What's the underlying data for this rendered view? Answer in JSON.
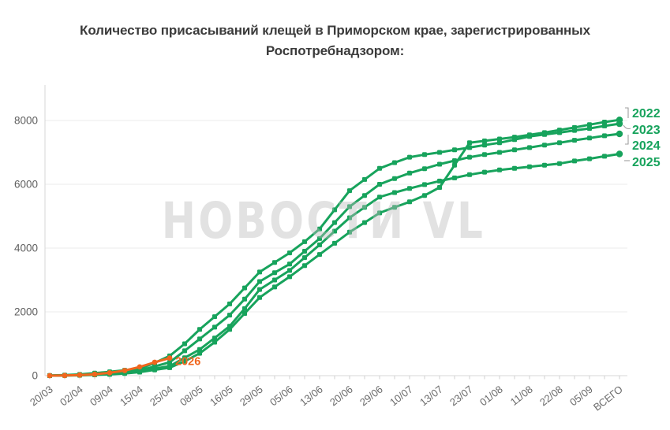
{
  "title": {
    "text": "Количество присасываний клещей в Приморском крае, зарегистрированных Роспотребнадзором:"
  },
  "watermark": {
    "text": "НОВОСТИ VL"
  },
  "colors": {
    "green": "#17a35c",
    "orange": "#f0661e",
    "grid": "#ebebeb",
    "axis_text": "#6a6a6a",
    "title_text": "#3b3b3b",
    "watermark": "#bcbcbc"
  },
  "chart_data": {
    "type": "line",
    "title": "Количество присасываний клещей в Приморском крае, зарегистрированных Роспотребнадзором:",
    "xlabel": "",
    "ylabel": "",
    "ylim": [
      0,
      8800
    ],
    "yticks": [
      0,
      2000,
      4000,
      6000,
      8000
    ],
    "grid": true,
    "legend_position": "right-of-line-ends",
    "x_labels": [
      "20/03",
      "02/04",
      "09/04",
      "15/04",
      "25/04",
      "08/05",
      "16/05",
      "29/05",
      "05/06",
      "13/06",
      "20/06",
      "29/06",
      "10/07",
      "13/07",
      "23/07",
      "01/08",
      "11/08",
      "22/08",
      "05/09",
      "ВСЕГО"
    ],
    "points_per_label_interval": 2,
    "series": [
      {
        "name": "2022",
        "color": "#17a35c",
        "legend": "right",
        "values": [
          0,
          5,
          10,
          25,
          40,
          70,
          110,
          180,
          250,
          450,
          700,
          1050,
          1450,
          1950,
          2450,
          2780,
          3100,
          3450,
          3800,
          4150,
          4500,
          4800,
          5100,
          5280,
          5450,
          5650,
          5900,
          6600,
          7300,
          7360,
          7420,
          7480,
          7550,
          7620,
          7700,
          7780,
          7870,
          7950,
          8020
        ]
      },
      {
        "name": "2023",
        "color": "#17a35c",
        "legend": "right",
        "values": [
          5,
          20,
          40,
          80,
          120,
          170,
          220,
          400,
          620,
          1000,
          1450,
          1850,
          2250,
          2750,
          3250,
          3550,
          3850,
          4200,
          4600,
          5200,
          5800,
          6150,
          6500,
          6680,
          6850,
          6930,
          7000,
          7080,
          7150,
          7230,
          7300,
          7400,
          7500,
          7560,
          7620,
          7690,
          7750,
          7830,
          7900
        ]
      },
      {
        "name": "2024",
        "color": "#17a35c",
        "legend": "right",
        "values": [
          0,
          10,
          20,
          45,
          70,
          120,
          170,
          290,
          420,
          780,
          1150,
          1520,
          1900,
          2400,
          2950,
          3230,
          3500,
          3900,
          4300,
          4800,
          5300,
          5650,
          6000,
          6180,
          6350,
          6490,
          6630,
          6740,
          6850,
          6930,
          7000,
          7080,
          7150,
          7230,
          7300,
          7380,
          7450,
          7520,
          7580
        ]
      },
      {
        "name": "2025",
        "color": "#17a35c",
        "legend": "right",
        "values": [
          0,
          8,
          15,
          35,
          60,
          100,
          140,
          220,
          300,
          560,
          820,
          1180,
          1550,
          2100,
          2700,
          3000,
          3300,
          3700,
          4100,
          4530,
          4950,
          5280,
          5600,
          5740,
          5870,
          5990,
          6100,
          6200,
          6300,
          6380,
          6450,
          6500,
          6550,
          6600,
          6650,
          6730,
          6800,
          6880,
          6950
        ]
      },
      {
        "name": "2026",
        "color": "#f0661e",
        "legend": "inline-end",
        "values": [
          0,
          5,
          20,
          45,
          90,
          160,
          275,
          420,
          550
        ]
      }
    ]
  }
}
